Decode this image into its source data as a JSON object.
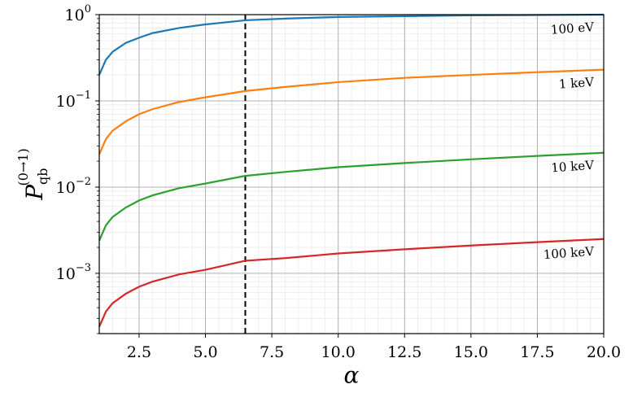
{
  "chart_data": {
    "type": "line",
    "log_y": true,
    "grid": true,
    "x_label": "α",
    "y_label": {
      "main": "P",
      "sub": "qb",
      "sup": "(0→1)"
    },
    "xlim": [
      1,
      20
    ],
    "ylim": [
      0.0002,
      1
    ],
    "xticks": [
      2.5,
      {
        "value": 5,
        "label": "5.0"
      },
      7.5,
      {
        "value": 10,
        "label": "10.0"
      },
      12.5,
      {
        "value": 15,
        "label": "15.0"
      },
      17.5,
      {
        "value": 20,
        "label": "20.0"
      }
    ],
    "yticks": [
      {
        "value": 1,
        "label": "10",
        "exponent": "0"
      },
      {
        "value": 0.1,
        "label": "10",
        "exponent": "−1"
      },
      {
        "value": 0.01,
        "label": "10",
        "exponent": "−2"
      },
      {
        "value": 0.001,
        "label": "10",
        "exponent": "−3"
      }
    ],
    "vline": {
      "x": 6.5,
      "color": "#000000"
    },
    "x": [
      1,
      1.25,
      1.5,
      2,
      2.5,
      3,
      4,
      5,
      6.5,
      8,
      10,
      12.5,
      15,
      17.5,
      20
    ],
    "series": [
      {
        "name": "100 eV",
        "color": "#1f77b4",
        "values": [
          0.2,
          0.3,
          0.37,
          0.47,
          0.54,
          0.61,
          0.7,
          0.77,
          0.86,
          0.9,
          0.94,
          0.96,
          0.98,
          0.99,
          1.0
        ]
      },
      {
        "name": "1 keV",
        "color": "#ff7f0e",
        "values": [
          0.024,
          0.036,
          0.045,
          0.058,
          0.07,
          0.08,
          0.097,
          0.11,
          0.13,
          0.145,
          0.165,
          0.185,
          0.2,
          0.215,
          0.23
        ]
      },
      {
        "name": "10 keV",
        "color": "#2ca02c",
        "values": [
          0.0024,
          0.0036,
          0.0045,
          0.0058,
          0.007,
          0.008,
          0.0097,
          0.011,
          0.0135,
          0.015,
          0.017,
          0.019,
          0.021,
          0.023,
          0.025
        ]
      },
      {
        "name": "100 keV",
        "color": "#d62728",
        "values": [
          0.00024,
          0.00036,
          0.00045,
          0.00058,
          0.0007,
          0.0008,
          0.00097,
          0.0011,
          0.0014,
          0.0015,
          0.0017,
          0.0019,
          0.0021,
          0.0023,
          0.0025
        ]
      }
    ]
  }
}
